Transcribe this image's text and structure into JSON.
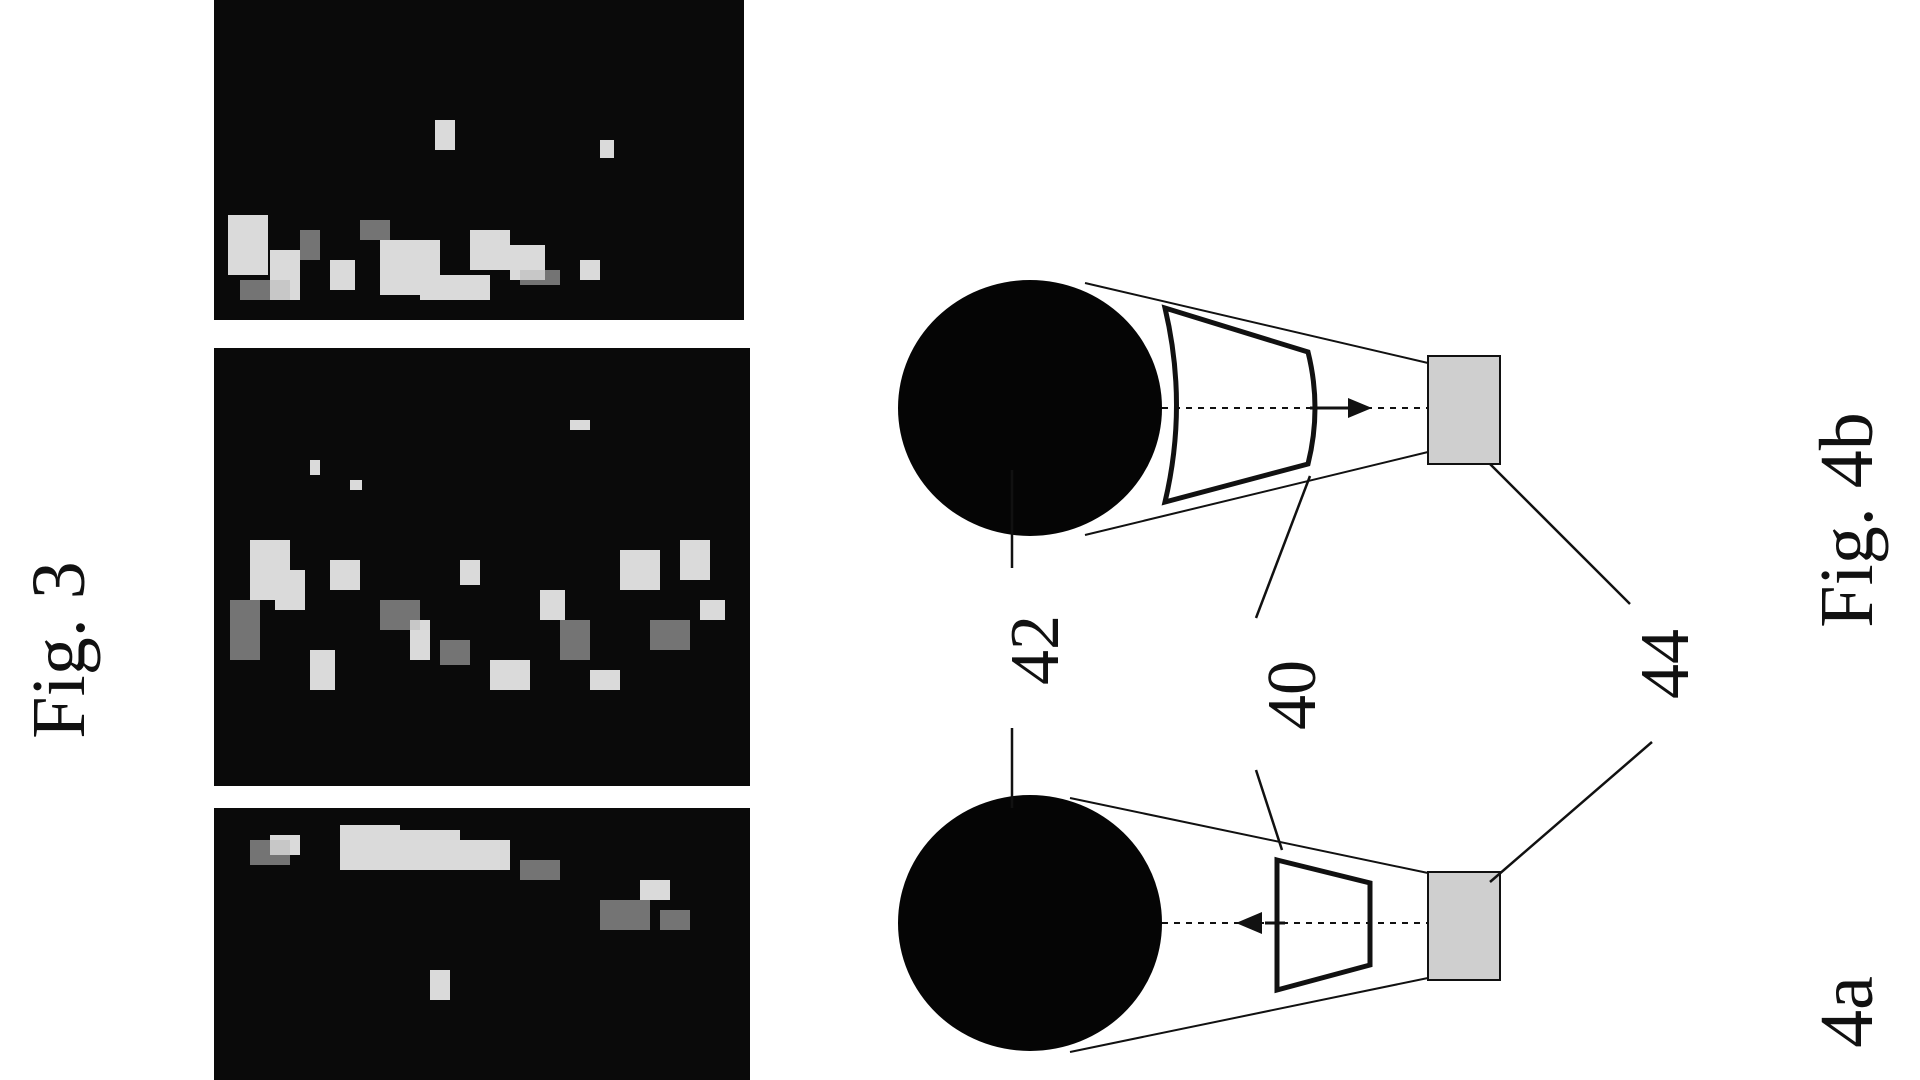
{
  "figures": {
    "fig3": {
      "caption": "Fig. 3",
      "panels": [
        "image-panel-top",
        "image-panel-middle",
        "image-panel-bottom"
      ]
    },
    "fig4": {
      "caption_b": "Fig. 4b",
      "caption_a": "4a",
      "ref_target": "42",
      "ref_frame": "40",
      "ref_source": "44"
    }
  },
  "colors": {
    "ink": "#111111",
    "panel": "#0a0a0a",
    "source_fill": "#cfcfcf"
  },
  "icons": {
    "fig4b_arrow": "arrow-down",
    "fig4a_arrow": "arrow-up"
  }
}
